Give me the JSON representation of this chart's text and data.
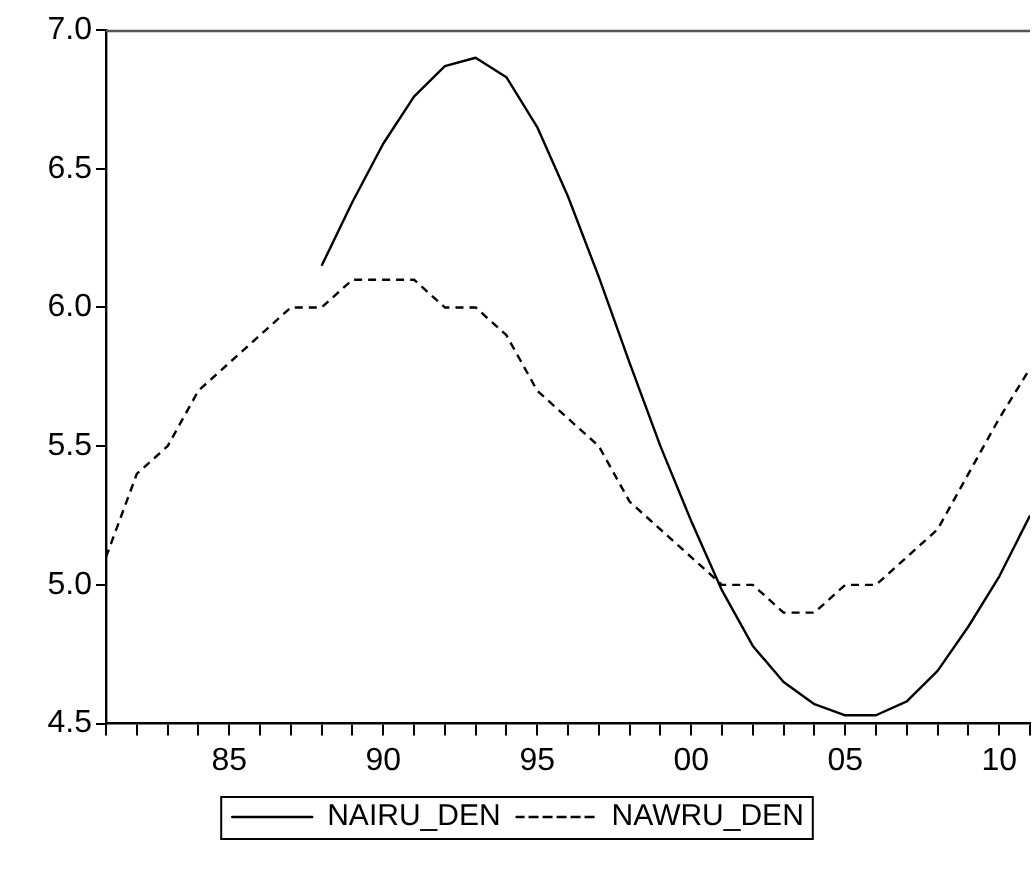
{
  "chart_data": {
    "type": "line",
    "x": [
      1981,
      1982,
      1983,
      1984,
      1985,
      1986,
      1987,
      1988,
      1989,
      1990,
      1991,
      1992,
      1993,
      1994,
      1995,
      1996,
      1997,
      1998,
      1999,
      2000,
      2001,
      2002,
      2003,
      2004,
      2005,
      2006,
      2007,
      2008,
      2009,
      2010,
      2011
    ],
    "series": [
      {
        "name": "NAIRU_DEN",
        "color": "#000000",
        "line_style": "solid",
        "values": [
          null,
          null,
          null,
          null,
          null,
          null,
          null,
          6.15,
          6.38,
          6.59,
          6.76,
          6.87,
          6.9,
          6.83,
          6.65,
          6.4,
          6.11,
          5.8,
          5.5,
          5.23,
          4.98,
          4.78,
          4.65,
          4.57,
          4.53,
          4.53,
          4.58,
          4.69,
          4.85,
          5.03,
          5.25
        ]
      },
      {
        "name": "NAWRU_DEN",
        "color": "#000000",
        "line_style": "dashed",
        "values": [
          5.1,
          5.4,
          5.5,
          5.7,
          5.8,
          5.9,
          6.0,
          6.0,
          6.1,
          6.1,
          6.1,
          6.0,
          6.0,
          5.9,
          5.7,
          5.6,
          5.5,
          5.3,
          5.2,
          5.1,
          5.0,
          5.0,
          4.9,
          4.9,
          5.0,
          5.0,
          5.1,
          5.2,
          5.4,
          5.6,
          5.78
        ]
      }
    ],
    "xlim": [
      1981,
      2011
    ],
    "xticks": [
      {
        "value": 1981,
        "label": null
      },
      {
        "value": 1982,
        "label": null
      },
      {
        "value": 1983,
        "label": null
      },
      {
        "value": 1984,
        "label": null
      },
      {
        "value": 1985,
        "label": "85"
      },
      {
        "value": 1986,
        "label": null
      },
      {
        "value": 1987,
        "label": null
      },
      {
        "value": 1988,
        "label": null
      },
      {
        "value": 1989,
        "label": null
      },
      {
        "value": 1990,
        "label": "90"
      },
      {
        "value": 1991,
        "label": null
      },
      {
        "value": 1992,
        "label": null
      },
      {
        "value": 1993,
        "label": null
      },
      {
        "value": 1994,
        "label": null
      },
      {
        "value": 1995,
        "label": "95"
      },
      {
        "value": 1996,
        "label": null
      },
      {
        "value": 1997,
        "label": null
      },
      {
        "value": 1998,
        "label": null
      },
      {
        "value": 1999,
        "label": null
      },
      {
        "value": 2000,
        "label": "00"
      },
      {
        "value": 2001,
        "label": null
      },
      {
        "value": 2002,
        "label": null
      },
      {
        "value": 2003,
        "label": null
      },
      {
        "value": 2004,
        "label": null
      },
      {
        "value": 2005,
        "label": "05"
      },
      {
        "value": 2006,
        "label": null
      },
      {
        "value": 2007,
        "label": null
      },
      {
        "value": 2008,
        "label": null
      },
      {
        "value": 2009,
        "label": null
      },
      {
        "value": 2010,
        "label": "10"
      },
      {
        "value": 2011,
        "label": null
      }
    ],
    "ylim": [
      4.5,
      7.0
    ],
    "yticks": [
      {
        "value": 4.5,
        "label": "4.5"
      },
      {
        "value": 5.0,
        "label": "5.0"
      },
      {
        "value": 5.5,
        "label": "5.5"
      },
      {
        "value": 6.0,
        "label": "6.0"
      },
      {
        "value": 6.5,
        "label": "6.5"
      },
      {
        "value": 7.0,
        "label": "7.0"
      }
    ],
    "grid": false,
    "legend": "bottom",
    "marker": "none"
  }
}
